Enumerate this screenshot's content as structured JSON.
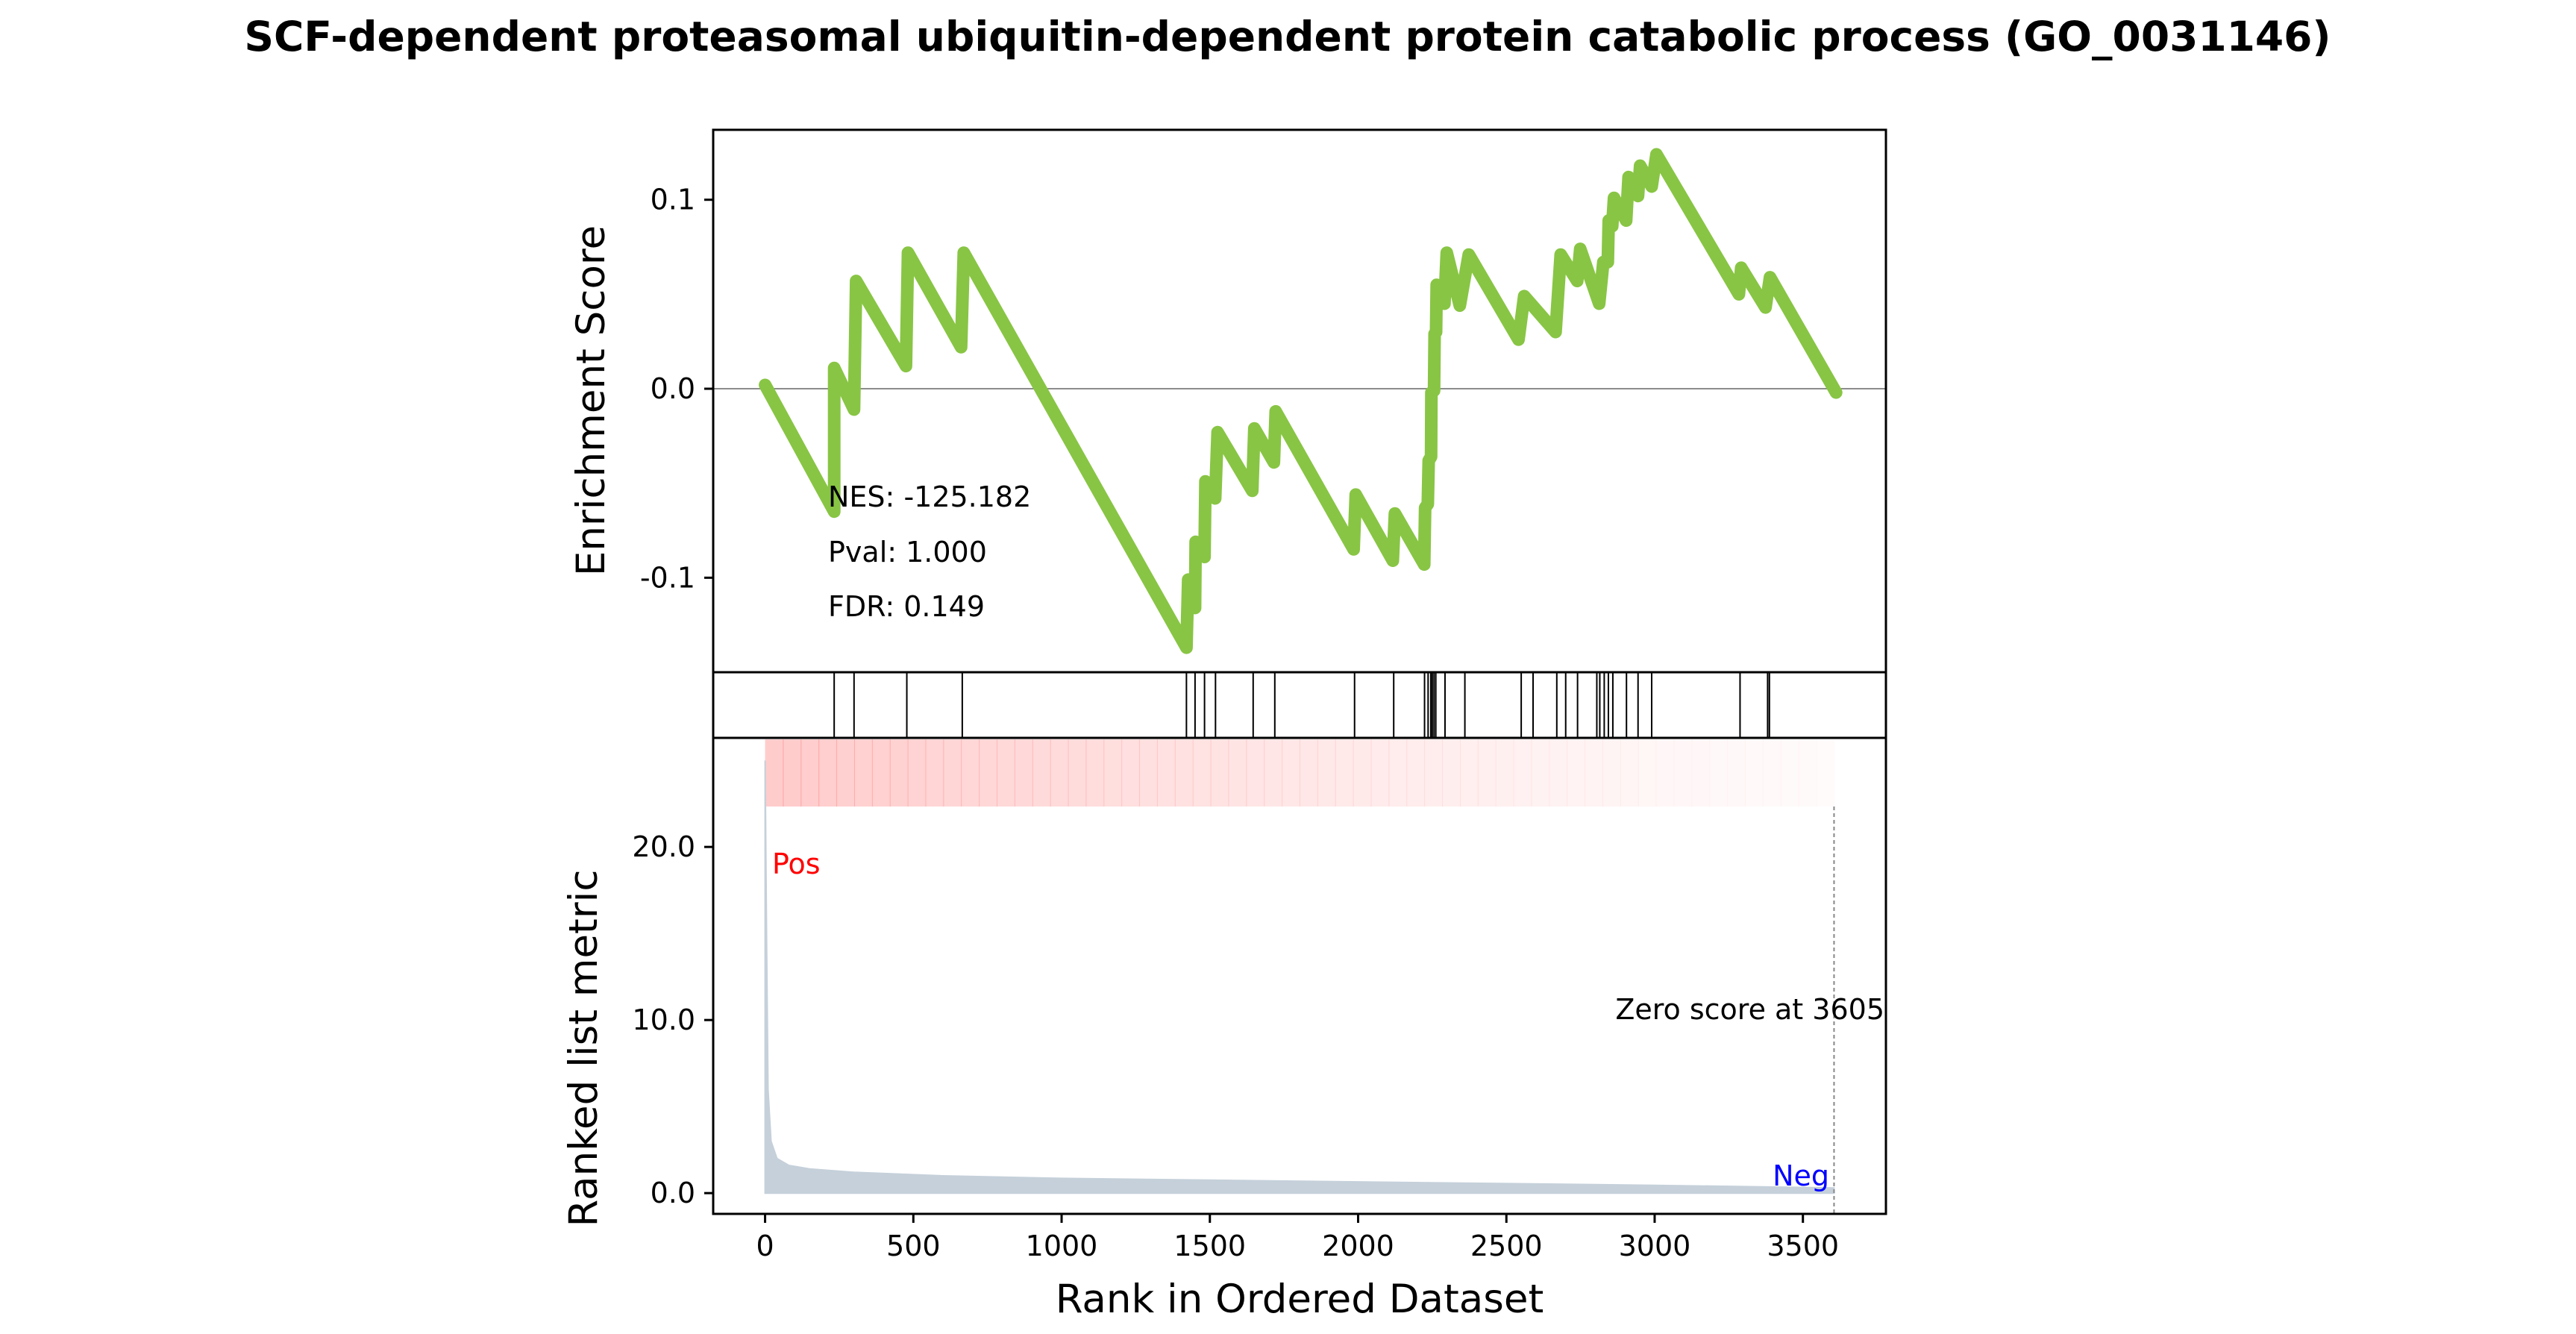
{
  "chart_data": {
    "type": "line",
    "title": "SCF-dependent proteasomal ubiquitin-dependent protein catabolic process (GO_0031146)",
    "xlabel": "Rank in Ordered Dataset",
    "x_ticks": [
      "0",
      "500",
      "1000",
      "1500",
      "2000",
      "2500",
      "3000",
      "3500"
    ],
    "xlim": [
      -175,
      3780
    ],
    "enrichment": {
      "ylabel": "Enrichment Score",
      "y_ticks": [
        "0.1",
        "0.0",
        "-0.1"
      ],
      "ylim": [
        -0.15,
        0.137
      ],
      "series_color": "#88c544",
      "points": [
        [
          0,
          0.002
        ],
        [
          233,
          -0.065
        ],
        [
          233,
          0.011
        ],
        [
          300,
          -0.011
        ],
        [
          307,
          0.057
        ],
        [
          475,
          0.012
        ],
        [
          482,
          0.072
        ],
        [
          661,
          0.022
        ],
        [
          670,
          0.072
        ],
        [
          1421,
          -0.137
        ],
        [
          1427,
          -0.101
        ],
        [
          1450,
          -0.116
        ],
        [
          1452,
          -0.081
        ],
        [
          1482,
          -0.089
        ],
        [
          1485,
          -0.049
        ],
        [
          1518,
          -0.058
        ],
        [
          1526,
          -0.023
        ],
        [
          1643,
          -0.054
        ],
        [
          1650,
          -0.021
        ],
        [
          1716,
          -0.039
        ],
        [
          1722,
          -0.012
        ],
        [
          1985,
          -0.085
        ],
        [
          1992,
          -0.056
        ],
        [
          2117,
          -0.091
        ],
        [
          2124,
          -0.066
        ],
        [
          2223,
          -0.093
        ],
        [
          2226,
          -0.063
        ],
        [
          2235,
          -0.061
        ],
        [
          2238,
          -0.038
        ],
        [
          2246,
          -0.036
        ],
        [
          2247,
          -0.002
        ],
        [
          2256,
          -0.001
        ],
        [
          2258,
          0.029
        ],
        [
          2263,
          0.03
        ],
        [
          2265,
          0.055
        ],
        [
          2291,
          0.045
        ],
        [
          2299,
          0.072
        ],
        [
          2343,
          0.044
        ],
        [
          2373,
          0.071
        ],
        [
          2541,
          0.026
        ],
        [
          2560,
          0.049
        ],
        [
          2666,
          0.03
        ],
        [
          2683,
          0.071
        ],
        [
          2739,
          0.057
        ],
        [
          2749,
          0.074
        ],
        [
          2813,
          0.045
        ],
        [
          2827,
          0.067
        ],
        [
          2842,
          0.067
        ],
        [
          2845,
          0.089
        ],
        [
          2857,
          0.086
        ],
        [
          2863,
          0.101
        ],
        [
          2904,
          0.089
        ],
        [
          2912,
          0.112
        ],
        [
          2944,
          0.102
        ],
        [
          2951,
          0.118
        ],
        [
          2990,
          0.107
        ],
        [
          3006,
          0.124
        ],
        [
          3284,
          0.05
        ],
        [
          3292,
          0.064
        ],
        [
          3374,
          0.043
        ],
        [
          3389,
          0.059
        ],
        [
          3612,
          -0.002
        ]
      ],
      "stats": {
        "nes": "NES: -125.182",
        "pval": "Pval: 1.000",
        "fdr": "FDR: 0.149"
      }
    },
    "hits": [
      233,
      300,
      478,
      665,
      1421,
      1450,
      1482,
      1519,
      1646,
      1719,
      1988,
      2120,
      2224,
      2236,
      2245,
      2250,
      2256,
      2262,
      2293,
      2360,
      2550,
      2590,
      2670,
      2700,
      2740,
      2805,
      2815,
      2830,
      2844,
      2859,
      2905,
      2944,
      2990,
      3288,
      3381,
      3387
    ],
    "ranked_metric": {
      "ylabel": "Ranked list metric",
      "y_ticks": [
        "20.0",
        "10.0",
        "0.0"
      ],
      "ylim": [
        -1.2,
        26.3
      ],
      "fill_color": "#c5d0da",
      "values": [
        [
          0,
          25.0
        ],
        [
          5,
          15.0
        ],
        [
          10,
          6.0
        ],
        [
          20,
          3.0
        ],
        [
          40,
          2.0
        ],
        [
          80,
          1.6
        ],
        [
          150,
          1.4
        ],
        [
          300,
          1.2
        ],
        [
          600,
          1.0
        ],
        [
          1000,
          0.85
        ],
        [
          1500,
          0.75
        ],
        [
          2000,
          0.65
        ],
        [
          2500,
          0.55
        ],
        [
          3000,
          0.45
        ],
        [
          3400,
          0.35
        ],
        [
          3605,
          0.3
        ]
      ],
      "zero_score_label": "Zero score at 3605",
      "zero_score_rank": 3605,
      "pos_label": "Pos",
      "neg_label": "Neg",
      "pos_color": "#ff0000",
      "neg_color": "#0000ff"
    }
  }
}
